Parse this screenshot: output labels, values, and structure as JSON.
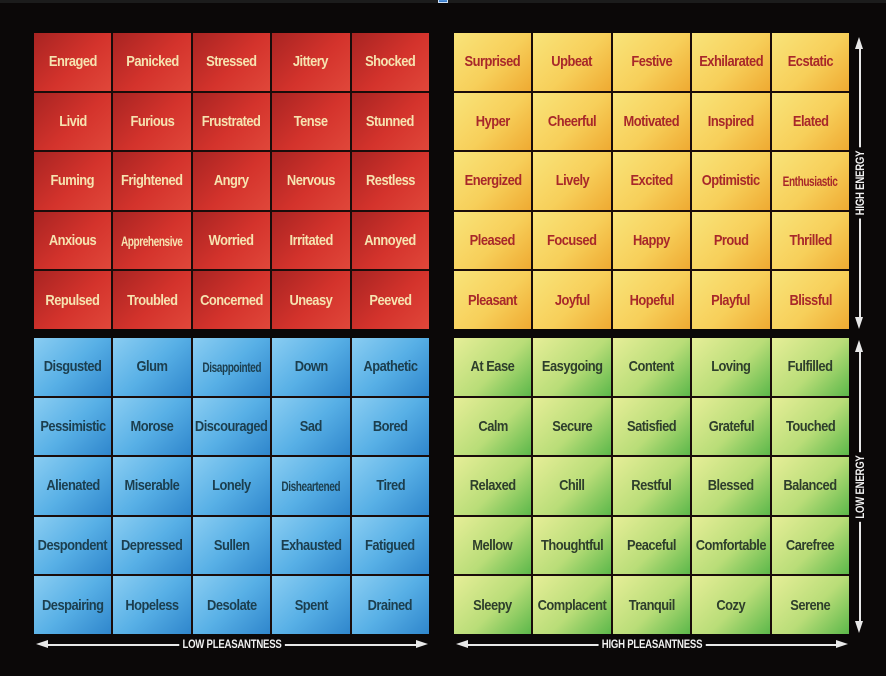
{
  "title_bar": {
    "icon": "window-icon"
  },
  "axes": {
    "x_low": "LOW PLEASANTNESS",
    "x_high": "HIGH PLEASANTNESS",
    "y_high": "HIGH ENERGY",
    "y_low": "LOW ENERGY"
  },
  "colors": {
    "red": "#d4332c",
    "yellow": "#f7cf5a",
    "blue": "#58b0e6",
    "green": "#b9dd78",
    "background": "#0b0808"
  },
  "quadrants": {
    "red": {
      "name": "high-energy-low-pleasantness",
      "cells": [
        "Enraged",
        "Panicked",
        "Stressed",
        "Jittery",
        "Shocked",
        "Livid",
        "Furious",
        "Frustrated",
        "Tense",
        "Stunned",
        "Fuming",
        "Frightened",
        "Angry",
        "Nervous",
        "Restless",
        "Anxious",
        "Apprehensive",
        "Worried",
        "Irritated",
        "Annoyed",
        "Repulsed",
        "Troubled",
        "Concerned",
        "Uneasy",
        "Peeved"
      ]
    },
    "yellow": {
      "name": "high-energy-high-pleasantness",
      "cells": [
        "Surprised",
        "Upbeat",
        "Festive",
        "Exhilarated",
        "Ecstatic",
        "Hyper",
        "Cheerful",
        "Motivated",
        "Inspired",
        "Elated",
        "Energized",
        "Lively",
        "Excited",
        "Optimistic",
        "Enthusiastic",
        "Pleased",
        "Focused",
        "Happy",
        "Proud",
        "Thrilled",
        "Pleasant",
        "Joyful",
        "Hopeful",
        "Playful",
        "Blissful"
      ]
    },
    "blue": {
      "name": "low-energy-low-pleasantness",
      "cells": [
        "Disgusted",
        "Glum",
        "Disappointed",
        "Down",
        "Apathetic",
        "Pessimistic",
        "Morose",
        "Discouraged",
        "Sad",
        "Bored",
        "Alienated",
        "Miserable",
        "Lonely",
        "Disheartened",
        "Tired",
        "Despondent",
        "Depressed",
        "Sullen",
        "Exhausted",
        "Fatigued",
        "Despairing",
        "Hopeless",
        "Desolate",
        "Spent",
        "Drained"
      ]
    },
    "green": {
      "name": "low-energy-high-pleasantness",
      "cells": [
        "At Ease",
        "Easygoing",
        "Content",
        "Loving",
        "Fulfilled",
        "Calm",
        "Secure",
        "Satisfied",
        "Grateful",
        "Touched",
        "Relaxed",
        "Chill",
        "Restful",
        "Blessed",
        "Balanced",
        "Mellow",
        "Thoughtful",
        "Peaceful",
        "Comfortable",
        "Carefree",
        "Sleepy",
        "Complacent",
        "Tranquil",
        "Cozy",
        "Serene"
      ]
    }
  }
}
